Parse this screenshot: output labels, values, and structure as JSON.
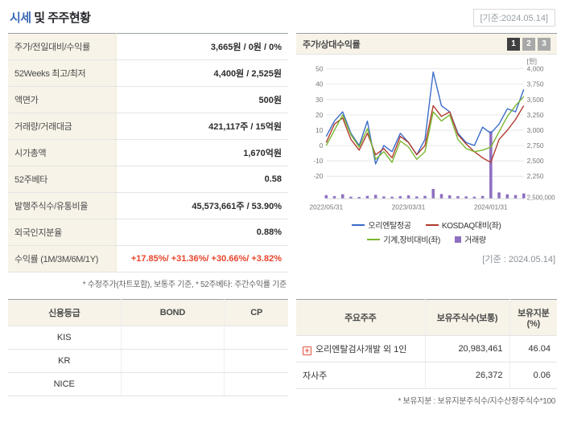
{
  "header": {
    "title_accent": "시세",
    "title_rest": " 및 주주현황",
    "date_label": "[기준:2024.05.14]"
  },
  "colors": {
    "title_accent": "#3c6ab5",
    "negative_red": "#e8452c",
    "label_bg_beige": "#f7f3e8"
  },
  "summary": {
    "rows": [
      {
        "label": "주가/전일대비/수익률",
        "value": "3,665원 / 0원 / 0%"
      },
      {
        "label": "52Weeks 최고/최저",
        "value": "4,400원 / 2,525원"
      },
      {
        "label": "액면가",
        "value": "500원"
      },
      {
        "label": "거래량/거래대금",
        "value": "421,117주 / 15억원"
      },
      {
        "label": "시가총액",
        "value": "1,670억원"
      },
      {
        "label": "52주베타",
        "value": "0.58"
      },
      {
        "label": "발행주식수/유통비율",
        "value": "45,573,661주 / 53.90%"
      },
      {
        "label": "외국인지분율",
        "value": "0.88%"
      },
      {
        "label": "수익률 (1M/3M/6M/1Y)",
        "value": "+17.85%/ +31.36%/ +30.66%/ +3.82%"
      }
    ],
    "note": "* 수정주가(차트포함), 보통주 기준, * 52주베타: 주간수익률 기준"
  },
  "chart_panel": {
    "title": "주가/상대수익률",
    "buttons": [
      "1",
      "2",
      "3"
    ],
    "active_button": "1",
    "date_label": "[기준 : 2024.05.14]"
  },
  "chart_data": {
    "type": "line",
    "x_labels": [
      "2022/05/31",
      "2023/03/31",
      "2024/01/31"
    ],
    "x_label_positions": [
      0,
      10,
      20
    ],
    "left_axis": {
      "ticks": [
        "50",
        "40",
        "30",
        "20",
        "10",
        "0",
        "-10",
        "-20"
      ],
      "range": [
        -20,
        50
      ]
    },
    "right_axis": {
      "unit": "[원]",
      "ticks": [
        "4,000",
        "3,750",
        "3,500",
        "3,250",
        "3,000",
        "2,750",
        "2,500",
        "2,250"
      ],
      "range": [
        2250,
        4000
      ]
    },
    "volume_axis": {
      "max_label": "2,500,000",
      "max": 2500000
    },
    "grid": true,
    "legend_position": "bottom",
    "series": [
      {
        "name": "오리엔탈정공",
        "color": "#3a6bc9",
        "axis": "right",
        "type": "line",
        "values": [
          2900,
          3150,
          3300,
          2950,
          2750,
          3150,
          2450,
          2750,
          2650,
          2950,
          2800,
          2600,
          2850,
          3950,
          3400,
          3300,
          2950,
          2800,
          2750,
          3050,
          2950,
          3100,
          3350,
          3300,
          3665
        ]
      },
      {
        "name": "KOSDAQ대비(좌)",
        "color": "#b03a2e",
        "axis": "left",
        "type": "line",
        "values": [
          2,
          14,
          18,
          4,
          -3,
          8,
          -6,
          -2,
          -8,
          6,
          2,
          -6,
          0,
          26,
          19,
          22,
          7,
          1,
          -4,
          -8,
          -11,
          4,
          10,
          17,
          26
        ]
      },
      {
        "name": "기계,장비대비(좌)",
        "color": "#7ab62e",
        "axis": "left",
        "type": "line",
        "values": [
          0,
          10,
          20,
          7,
          -1,
          11,
          -9,
          -4,
          -11,
          3,
          -1,
          -9,
          -4,
          22,
          16,
          20,
          4,
          -2,
          -4,
          -3,
          -1,
          9,
          19,
          26,
          32
        ]
      },
      {
        "name": "거래량",
        "color": "#8e6fc0",
        "type": "bar",
        "values": [
          120000,
          80000,
          150000,
          60000,
          50000,
          90000,
          130000,
          70000,
          60000,
          80000,
          110000,
          70000,
          90000,
          350000,
          160000,
          110000,
          80000,
          70000,
          60000,
          90000,
          2500000,
          220000,
          150000,
          120000,
          180000
        ]
      }
    ]
  },
  "credit": {
    "headers": [
      "신용등급",
      "BOND",
      "CP"
    ],
    "rows": [
      {
        "name": "KIS",
        "bond": "",
        "cp": ""
      },
      {
        "name": "KR",
        "bond": "",
        "cp": ""
      },
      {
        "name": "NICE",
        "bond": "",
        "cp": ""
      }
    ]
  },
  "share": {
    "headers": [
      "주요주주",
      "보유주식수(보통)",
      "보유지분(%)"
    ],
    "icon_glyph": "+",
    "rows": [
      {
        "name": "오리엔탈검사개발 외 1인",
        "shares": "20,983,461",
        "pct": "46.04",
        "icon": true
      },
      {
        "name": "자사주",
        "shares": "26,372",
        "pct": "0.06",
        "icon": false
      }
    ],
    "note": "* 보유지분 : 보유지분주식수/지수산정주식수*100"
  }
}
